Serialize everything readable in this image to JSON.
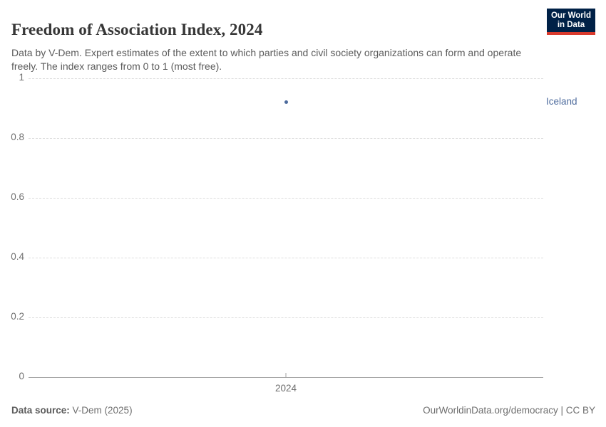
{
  "header": {
    "title": "Freedom of Association Index, 2024",
    "subtitle": "Data by V-Dem. Expert estimates of the extent to which parties and civil society organizations can form and operate freely. The index ranges from 0 to 1 (most free).",
    "logo": {
      "line1": "Our World",
      "line2": "in Data"
    }
  },
  "chart_data": {
    "type": "scatter",
    "title": "Freedom of Association Index, 2024",
    "xlabel": "",
    "ylabel": "",
    "xticks": [
      "2024"
    ],
    "yticks": [
      0,
      0.2,
      0.4,
      0.6,
      0.8,
      1
    ],
    "ylim": [
      0,
      1
    ],
    "grid": "horizontal-dashed",
    "legend_position": "entity-label-right-of-plot",
    "series": [
      {
        "name": "Iceland",
        "x": 2024,
        "y": 0.92,
        "color": "#4C6A9C"
      }
    ]
  },
  "footer": {
    "source_label": "Data source:",
    "source_value": " V-Dem (2025)",
    "attribution_link": "OurWorldinData.org/democracy",
    "attribution_suffix": " | CC BY"
  },
  "colors": {
    "accent_blue": "#4C6A9C",
    "logo_navy": "#002147",
    "logo_red": "#D93A2D",
    "gridline": "#dcdcdc",
    "axis_line": "#a3a3a3",
    "tick_text": "#6e6e6e",
    "title_text": "#373737",
    "subtitle_text": "#5b5b5b"
  }
}
